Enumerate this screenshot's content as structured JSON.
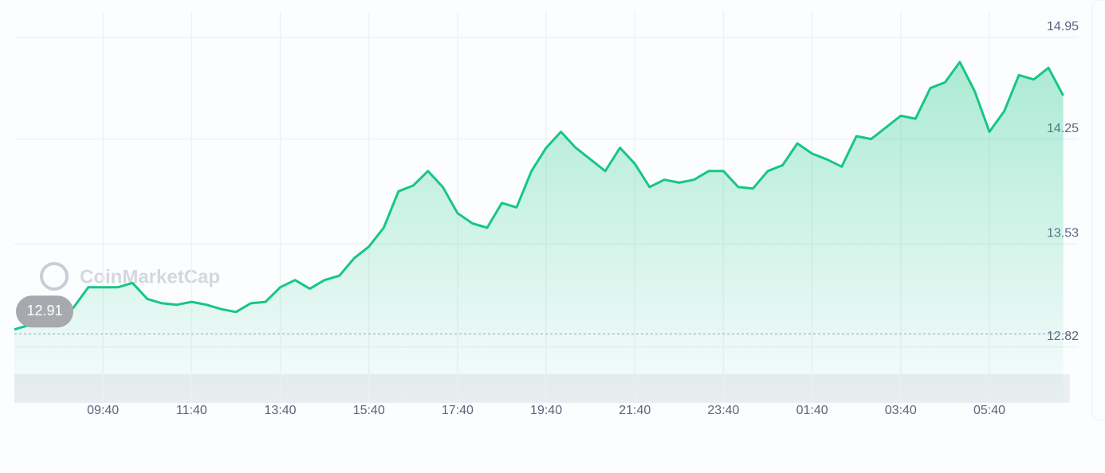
{
  "chart_data": {
    "type": "line",
    "watermark": "CoinMarketCap",
    "categories": [
      null,
      null,
      null,
      null,
      null,
      null,
      "09:40",
      null,
      null,
      null,
      null,
      null,
      "11:40",
      null,
      null,
      null,
      null,
      null,
      "13:40",
      null,
      null,
      null,
      null,
      null,
      "15:40",
      null,
      null,
      null,
      null,
      null,
      "17:40",
      null,
      null,
      null,
      null,
      null,
      "19:40",
      null,
      null,
      null,
      null,
      null,
      "21:40",
      null,
      null,
      null,
      null,
      null,
      "23:40",
      null,
      null,
      null,
      null,
      null,
      "01:40",
      null,
      null,
      null,
      null,
      null,
      "03:40",
      null,
      null,
      null,
      null,
      null,
      "05:40",
      null,
      null,
      null,
      null,
      null
    ],
    "values": [
      12.94,
      12.97,
      13.01,
      13.04,
      13.09,
      13.23,
      13.23,
      13.23,
      13.26,
      13.15,
      13.12,
      13.11,
      13.13,
      13.11,
      13.08,
      13.06,
      13.12,
      13.13,
      13.23,
      13.28,
      13.22,
      13.28,
      13.31,
      13.43,
      13.51,
      13.64,
      13.89,
      13.93,
      14.03,
      13.92,
      13.74,
      13.67,
      13.64,
      13.81,
      13.78,
      14.03,
      14.19,
      14.3,
      14.19,
      14.11,
      14.03,
      14.19,
      14.08,
      13.92,
      13.97,
      13.95,
      13.97,
      14.03,
      14.03,
      13.92,
      13.91,
      14.03,
      14.07,
      14.22,
      14.15,
      14.11,
      14.06,
      14.27,
      14.25,
      14.33,
      14.41,
      14.39,
      14.6,
      14.64,
      14.78,
      14.58,
      14.3,
      14.44,
      14.69,
      14.66,
      14.74,
      14.55
    ],
    "color": "#16c784",
    "ylim": [
      12.44,
      15.13
    ],
    "yticks": [
      12.82,
      13.53,
      14.25,
      14.95
    ],
    "reference_line": 12.91,
    "grid": true
  }
}
